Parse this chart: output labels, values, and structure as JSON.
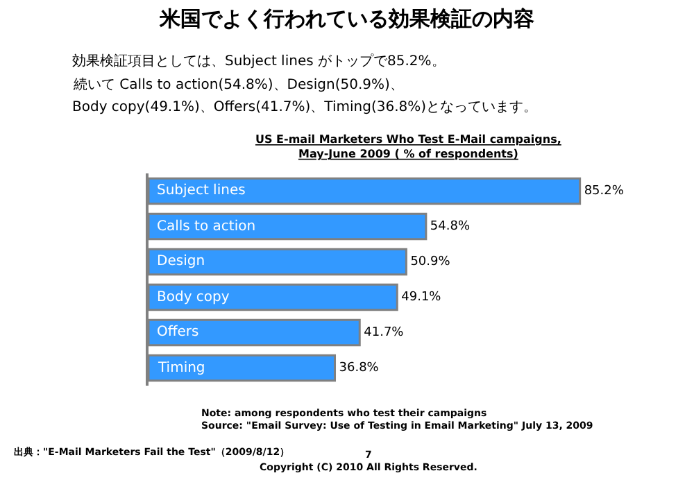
{
  "chart_data": {
    "type": "bar",
    "orientation": "horizontal",
    "title": "米国でよく行われている効果検証の内容",
    "subtitle": "US E-mail Marketers Who Test E-Mail campaigns,\nMay-June 2009 ( % of respondents)",
    "categories": [
      "Subject lines",
      "Calls to action",
      "Design",
      "Body copy",
      "Offers",
      "Timing"
    ],
    "values": [
      85.2,
      54.8,
      50.9,
      49.1,
      41.7,
      36.8
    ],
    "value_labels": [
      "85.2%",
      "54.8%",
      "50.9%",
      "49.1%",
      "41.7%",
      "36.8%"
    ],
    "color": "#3399ff",
    "legend": false,
    "annotations": [
      "効果検証項目としては、Subject lines がトップで85.2%。",
      "続いて Calls to action(54.8%)、Design(50.9%)、",
      "Body copy(49.1%)、Offers(41.7%)、Timing(36.8%)となっています。",
      "Note: among respondents who test their campaigns\nSource: \"Email Survey: Use of Testing in Email Marketing\" July 13, 2009",
      "出典：\"E-Mail Marketers Fail the Test\"（2009/8/12）",
      "7\nCopyright (C) 2010 All Rights Reserved."
    ]
  }
}
